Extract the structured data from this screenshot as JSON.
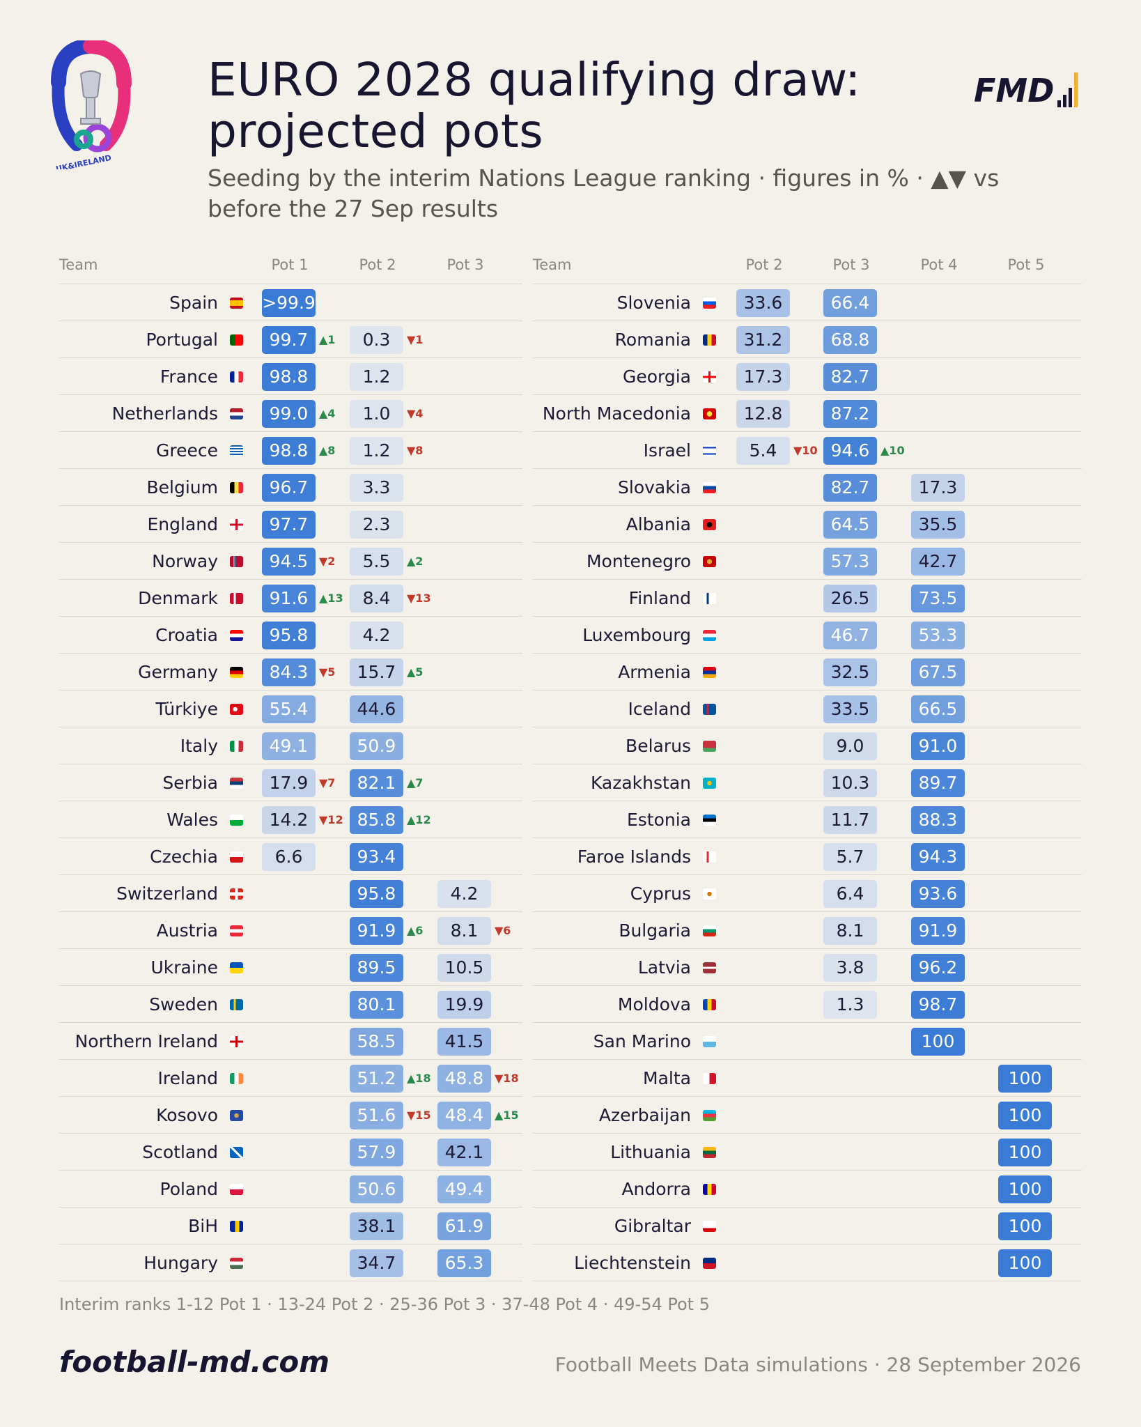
{
  "header": {
    "title_line1": "EURO 2028 qualifying draw:",
    "title_line2": "projected pots",
    "subtitle_line1": "Seeding by the interim Nations League ranking · figures in % · ▲▼ vs",
    "subtitle_line2": "before the 27 Sep results",
    "logo_left_text": "UK&IRELAND",
    "logo_right_text": "FMD"
  },
  "colors": {
    "background": "#f4f0ea",
    "scale_high": "#3a7bd5",
    "scale_low": "#dfe5ee",
    "up": "#2a8a4a",
    "down": "#c0392b"
  },
  "chart_data": {
    "type": "table",
    "left": {
      "columns": [
        "Team",
        "Pot 1",
        "Pot 2",
        "Pot 3"
      ],
      "rows": [
        {
          "team": "Spain",
          "flag": "flag-spain",
          "values": [
            ">99.9",
            null,
            null
          ],
          "changes": [
            null,
            null,
            null
          ]
        },
        {
          "team": "Portugal",
          "flag": "flag-portugal",
          "values": [
            "99.7",
            "0.3",
            null
          ],
          "changes": [
            "▲1",
            "▼1",
            null
          ]
        },
        {
          "team": "France",
          "flag": "flag-france",
          "values": [
            "98.8",
            "1.2",
            null
          ],
          "changes": [
            null,
            null,
            null
          ]
        },
        {
          "team": "Netherlands",
          "flag": "flag-netherlands",
          "values": [
            "99.0",
            "1.0",
            null
          ],
          "changes": [
            "▲4",
            "▼4",
            null
          ]
        },
        {
          "team": "Greece",
          "flag": "flag-greece",
          "values": [
            "98.8",
            "1.2",
            null
          ],
          "changes": [
            "▲8",
            "▼8",
            null
          ]
        },
        {
          "team": "Belgium",
          "flag": "flag-belgium",
          "values": [
            "96.7",
            "3.3",
            null
          ],
          "changes": [
            null,
            null,
            null
          ]
        },
        {
          "team": "England",
          "flag": "flag-england",
          "values": [
            "97.7",
            "2.3",
            null
          ],
          "changes": [
            null,
            null,
            null
          ]
        },
        {
          "team": "Norway",
          "flag": "flag-norway",
          "values": [
            "94.5",
            "5.5",
            null
          ],
          "changes": [
            "▼2",
            "▲2",
            null
          ]
        },
        {
          "team": "Denmark",
          "flag": "flag-denmark",
          "values": [
            "91.6",
            "8.4",
            null
          ],
          "changes": [
            "▲13",
            "▼13",
            null
          ]
        },
        {
          "team": "Croatia",
          "flag": "flag-croatia",
          "values": [
            "95.8",
            "4.2",
            null
          ],
          "changes": [
            null,
            null,
            null
          ]
        },
        {
          "team": "Germany",
          "flag": "flag-germany",
          "values": [
            "84.3",
            "15.7",
            null
          ],
          "changes": [
            "▼5",
            "▲5",
            null
          ]
        },
        {
          "team": "Türkiye",
          "flag": "flag-turkiye",
          "values": [
            "55.4",
            "44.6",
            null
          ],
          "changes": [
            null,
            null,
            null
          ]
        },
        {
          "team": "Italy",
          "flag": "flag-italy",
          "values": [
            "49.1",
            "50.9",
            null
          ],
          "changes": [
            null,
            null,
            null
          ]
        },
        {
          "team": "Serbia",
          "flag": "flag-serbia",
          "values": [
            "17.9",
            "82.1",
            null
          ],
          "changes": [
            "▼7",
            "▲7",
            null
          ]
        },
        {
          "team": "Wales",
          "flag": "flag-wales",
          "values": [
            "14.2",
            "85.8",
            null
          ],
          "changes": [
            "▼12",
            "▲12",
            null
          ]
        },
        {
          "team": "Czechia",
          "flag": "flag-czechia",
          "values": [
            "6.6",
            "93.4",
            null
          ],
          "changes": [
            null,
            null,
            null
          ]
        },
        {
          "team": "Switzerland",
          "flag": "flag-switzerland",
          "values": [
            null,
            "95.8",
            "4.2"
          ],
          "changes": [
            null,
            null,
            null
          ]
        },
        {
          "team": "Austria",
          "flag": "flag-austria",
          "values": [
            null,
            "91.9",
            "8.1"
          ],
          "changes": [
            null,
            "▲6",
            "▼6"
          ]
        },
        {
          "team": "Ukraine",
          "flag": "flag-ukraine",
          "values": [
            null,
            "89.5",
            "10.5"
          ],
          "changes": [
            null,
            null,
            null
          ]
        },
        {
          "team": "Sweden",
          "flag": "flag-sweden",
          "values": [
            null,
            "80.1",
            "19.9"
          ],
          "changes": [
            null,
            null,
            null
          ]
        },
        {
          "team": "Northern Ireland",
          "flag": "flag-northern-ireland",
          "values": [
            null,
            "58.5",
            "41.5"
          ],
          "changes": [
            null,
            null,
            null
          ]
        },
        {
          "team": "Ireland",
          "flag": "flag-ireland",
          "values": [
            null,
            "51.2",
            "48.8"
          ],
          "changes": [
            null,
            "▲18",
            "▼18"
          ]
        },
        {
          "team": "Kosovo",
          "flag": "flag-kosovo",
          "values": [
            null,
            "51.6",
            "48.4"
          ],
          "changes": [
            null,
            "▼15",
            "▲15"
          ]
        },
        {
          "team": "Scotland",
          "flag": "flag-scotland",
          "values": [
            null,
            "57.9",
            "42.1"
          ],
          "changes": [
            null,
            null,
            null
          ]
        },
        {
          "team": "Poland",
          "flag": "flag-poland",
          "values": [
            null,
            "50.6",
            "49.4"
          ],
          "changes": [
            null,
            null,
            null
          ]
        },
        {
          "team": "BiH",
          "flag": "flag-bih",
          "values": [
            null,
            "38.1",
            "61.9"
          ],
          "changes": [
            null,
            null,
            null
          ]
        },
        {
          "team": "Hungary",
          "flag": "flag-hungary",
          "values": [
            null,
            "34.7",
            "65.3"
          ],
          "changes": [
            null,
            null,
            null
          ]
        }
      ]
    },
    "right": {
      "columns": [
        "Team",
        "Pot 2",
        "Pot 3",
        "Pot 4",
        "Pot 5"
      ],
      "rows": [
        {
          "team": "Slovenia",
          "flag": "flag-slovenia",
          "values": [
            "33.6",
            "66.4",
            null,
            null
          ],
          "changes": [
            null,
            null,
            null,
            null
          ]
        },
        {
          "team": "Romania",
          "flag": "flag-romania",
          "values": [
            "31.2",
            "68.8",
            null,
            null
          ],
          "changes": [
            null,
            null,
            null,
            null
          ]
        },
        {
          "team": "Georgia",
          "flag": "flag-georgia",
          "values": [
            "17.3",
            "82.7",
            null,
            null
          ],
          "changes": [
            null,
            null,
            null,
            null
          ]
        },
        {
          "team": "North Macedonia",
          "flag": "flag-north-macedonia",
          "values": [
            "12.8",
            "87.2",
            null,
            null
          ],
          "changes": [
            null,
            null,
            null,
            null
          ]
        },
        {
          "team": "Israel",
          "flag": "flag-israel",
          "values": [
            "5.4",
            "94.6",
            null,
            null
          ],
          "changes": [
            "▼10",
            "▲10",
            null,
            null
          ]
        },
        {
          "team": "Slovakia",
          "flag": "flag-slovakia",
          "values": [
            null,
            "82.7",
            "17.3",
            null
          ],
          "changes": [
            null,
            null,
            null,
            null
          ]
        },
        {
          "team": "Albania",
          "flag": "flag-albania",
          "values": [
            null,
            "64.5",
            "35.5",
            null
          ],
          "changes": [
            null,
            null,
            null,
            null
          ]
        },
        {
          "team": "Montenegro",
          "flag": "flag-montenegro",
          "values": [
            null,
            "57.3",
            "42.7",
            null
          ],
          "changes": [
            null,
            null,
            null,
            null
          ]
        },
        {
          "team": "Finland",
          "flag": "flag-finland",
          "values": [
            null,
            "26.5",
            "73.5",
            null
          ],
          "changes": [
            null,
            null,
            null,
            null
          ]
        },
        {
          "team": "Luxembourg",
          "flag": "flag-luxembourg",
          "values": [
            null,
            "46.7",
            "53.3",
            null
          ],
          "changes": [
            null,
            null,
            null,
            null
          ]
        },
        {
          "team": "Armenia",
          "flag": "flag-armenia",
          "values": [
            null,
            "32.5",
            "67.5",
            null
          ],
          "changes": [
            null,
            null,
            null,
            null
          ]
        },
        {
          "team": "Iceland",
          "flag": "flag-iceland",
          "values": [
            null,
            "33.5",
            "66.5",
            null
          ],
          "changes": [
            null,
            null,
            null,
            null
          ]
        },
        {
          "team": "Belarus",
          "flag": "flag-belarus",
          "values": [
            null,
            "9.0",
            "91.0",
            null
          ],
          "changes": [
            null,
            null,
            null,
            null
          ]
        },
        {
          "team": "Kazakhstan",
          "flag": "flag-kazakhstan",
          "values": [
            null,
            "10.3",
            "89.7",
            null
          ],
          "changes": [
            null,
            null,
            null,
            null
          ]
        },
        {
          "team": "Estonia",
          "flag": "flag-estonia",
          "values": [
            null,
            "11.7",
            "88.3",
            null
          ],
          "changes": [
            null,
            null,
            null,
            null
          ]
        },
        {
          "team": "Faroe Islands",
          "flag": "flag-faroe-islands",
          "values": [
            null,
            "5.7",
            "94.3",
            null
          ],
          "changes": [
            null,
            null,
            null,
            null
          ]
        },
        {
          "team": "Cyprus",
          "flag": "flag-cyprus",
          "values": [
            null,
            "6.4",
            "93.6",
            null
          ],
          "changes": [
            null,
            null,
            null,
            null
          ]
        },
        {
          "team": "Bulgaria",
          "flag": "flag-bulgaria",
          "values": [
            null,
            "8.1",
            "91.9",
            null
          ],
          "changes": [
            null,
            null,
            null,
            null
          ]
        },
        {
          "team": "Latvia",
          "flag": "flag-latvia",
          "values": [
            null,
            "3.8",
            "96.2",
            null
          ],
          "changes": [
            null,
            null,
            null,
            null
          ]
        },
        {
          "team": "Moldova",
          "flag": "flag-moldova",
          "values": [
            null,
            "1.3",
            "98.7",
            null
          ],
          "changes": [
            null,
            null,
            null,
            null
          ]
        },
        {
          "team": "San Marino",
          "flag": "flag-san-marino",
          "values": [
            null,
            null,
            "100",
            null
          ],
          "changes": [
            null,
            null,
            null,
            null
          ]
        },
        {
          "team": "Malta",
          "flag": "flag-malta",
          "values": [
            null,
            null,
            null,
            "100"
          ],
          "changes": [
            null,
            null,
            null,
            null
          ]
        },
        {
          "team": "Azerbaijan",
          "flag": "flag-azerbaijan",
          "values": [
            null,
            null,
            null,
            "100"
          ],
          "changes": [
            null,
            null,
            null,
            null
          ]
        },
        {
          "team": "Lithuania",
          "flag": "flag-lithuania",
          "values": [
            null,
            null,
            null,
            "100"
          ],
          "changes": [
            null,
            null,
            null,
            null
          ]
        },
        {
          "team": "Andorra",
          "flag": "flag-andorra",
          "values": [
            null,
            null,
            null,
            "100"
          ],
          "changes": [
            null,
            null,
            null,
            null
          ]
        },
        {
          "team": "Gibraltar",
          "flag": "flag-gibraltar",
          "values": [
            null,
            null,
            null,
            "100"
          ],
          "changes": [
            null,
            null,
            null,
            null
          ]
        },
        {
          "team": "Liechtenstein",
          "flag": "flag-liechtenstein",
          "values": [
            null,
            null,
            null,
            "100"
          ],
          "changes": [
            null,
            null,
            null,
            null
          ]
        }
      ]
    }
  },
  "footer": {
    "note": "Interim ranks 1-12 Pot 1 · 13-24 Pot 2 · 25-36 Pot 3 · 37-48 Pot 4 · 49-54 Pot 5",
    "site": "football-md.com",
    "source": "Football Meets Data simulations · 28 September 2026"
  }
}
